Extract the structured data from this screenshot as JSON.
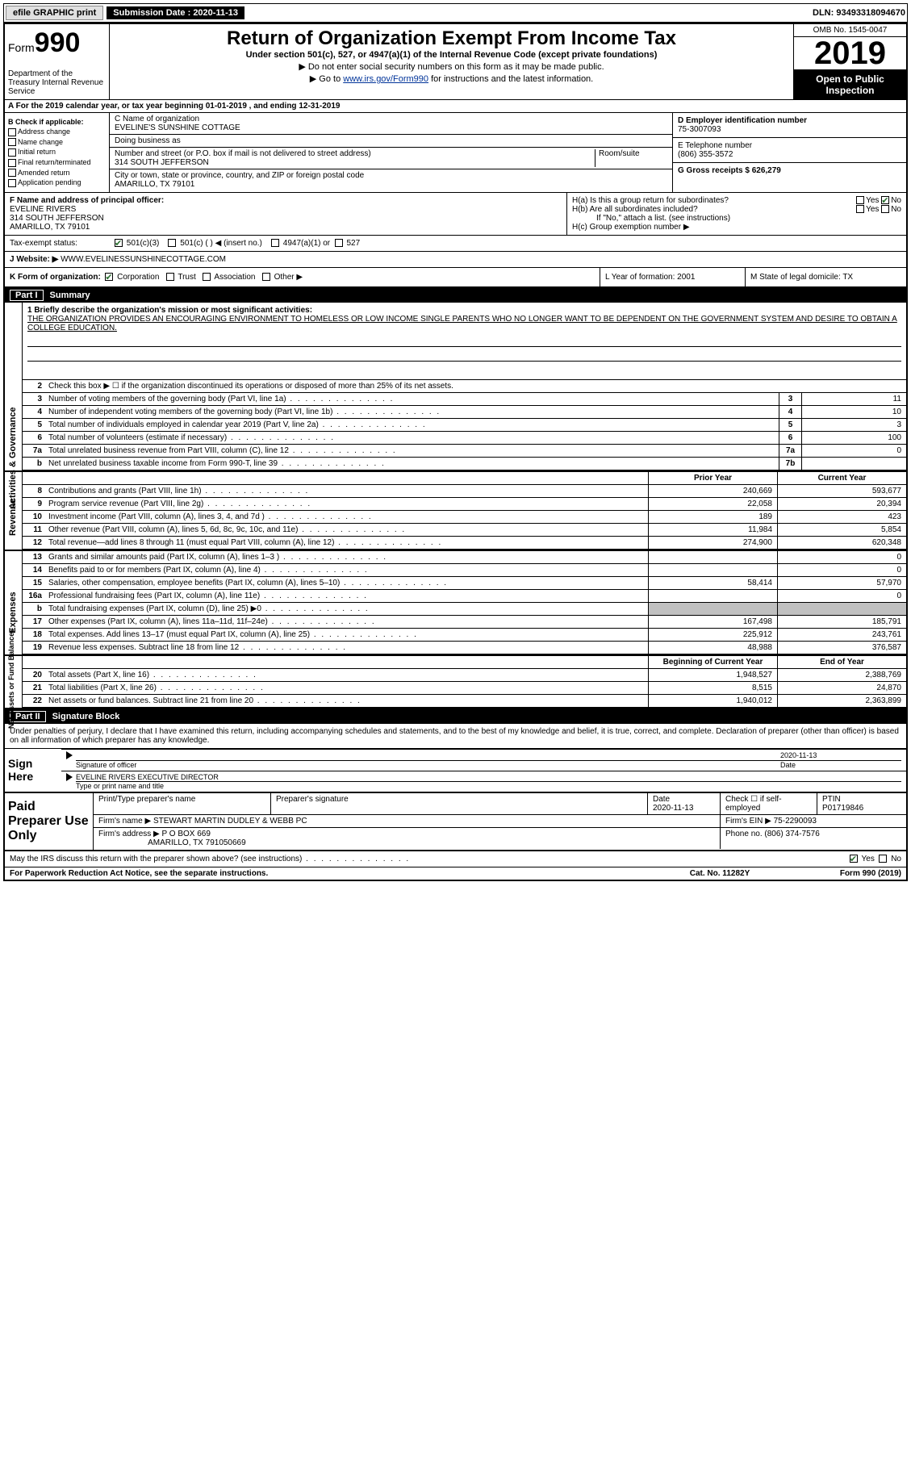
{
  "topbar": {
    "efile": "efile GRAPHIC print",
    "submission_label": "Submission Date : 2020-11-13",
    "dln": "DLN: 93493318094670"
  },
  "header": {
    "form_prefix": "Form",
    "form_number": "990",
    "dept": "Department of the Treasury Internal Revenue Service",
    "title": "Return of Organization Exempt From Income Tax",
    "subtitle": "Under section 501(c), 527, or 4947(a)(1) of the Internal Revenue Code (except private foundations)",
    "note1": "▶ Do not enter social security numbers on this form as it may be made public.",
    "note2_prefix": "▶ Go to ",
    "note2_link": "www.irs.gov/Form990",
    "note2_suffix": " for instructions and the latest information.",
    "omb": "OMB No. 1545-0047",
    "year": "2019",
    "open": "Open to Public Inspection"
  },
  "period": "A For the 2019 calendar year, or tax year beginning 01-01-2019   , and ending 12-31-2019",
  "checkboxes": {
    "heading": "B Check if applicable:",
    "items": [
      "Address change",
      "Name change",
      "Initial return",
      "Final return/terminated",
      "Amended return",
      "Application pending"
    ]
  },
  "entity": {
    "name_label": "C Name of organization",
    "name": "EVELINE'S SUNSHINE COTTAGE",
    "dba_label": "Doing business as",
    "addr_label": "Number and street (or P.O. box if mail is not delivered to street address)",
    "room_label": "Room/suite",
    "addr": "314 SOUTH JEFFERSON",
    "city_label": "City or town, state or province, country, and ZIP or foreign postal code",
    "city": "AMARILLO, TX  79101",
    "ein_label": "D Employer identification number",
    "ein": "75-3007093",
    "phone_label": "E Telephone number",
    "phone": "(806) 355-3572",
    "gross_label": "G Gross receipts $ 626,279"
  },
  "officer": {
    "label": "F  Name and address of principal officer:",
    "name": "EVELINE RIVERS",
    "addr1": "314 SOUTH JEFFERSON",
    "addr2": "AMARILLO, TX  79101",
    "ha": "H(a)  Is this a group return for subordinates?",
    "hb": "H(b)  Are all subordinates included?",
    "hb_note": "If \"No,\" attach a list. (see instructions)",
    "hc": "H(c)  Group exemption number ▶",
    "yes": "Yes",
    "no": "No"
  },
  "status": {
    "label": "Tax-exempt status:",
    "c3": "501(c)(3)",
    "c_other": "501(c) (  ) ◀ (insert no.)",
    "c4947": "4947(a)(1) or",
    "c527": "527"
  },
  "website": {
    "label": "J   Website: ▶",
    "value": "WWW.EVELINESSUNSHINECOTTAGE.COM"
  },
  "korg": {
    "label": "K Form of organization:",
    "corp": "Corporation",
    "trust": "Trust",
    "assoc": "Association",
    "other": "Other ▶",
    "year_label": "L Year of formation: 2001",
    "state_label": "M State of legal domicile: TX"
  },
  "part1": {
    "part": "Part I",
    "title": "Summary",
    "mission_label": "1  Briefly describe the organization's mission or most significant activities:",
    "mission": "THE ORGANIZATION PROVIDES AN ENCOURAGING ENVIRONMENT TO HOMELESS OR LOW INCOME SINGLE PARENTS WHO NO LONGER WANT TO BE DEPENDENT ON THE GOVERNMENT SYSTEM AND DESIRE TO OBTAIN A COLLEGE EDUCATION.",
    "line2": "Check this box ▶ ☐  if the organization discontinued its operations or disposed of more than 25% of its net assets.",
    "sections": {
      "activities": "Activities & Governance",
      "revenue": "Revenue",
      "expenses": "Expenses",
      "netassets": "Net Assets or Fund Balances"
    },
    "lines_gov": [
      {
        "n": "3",
        "lbl": "Number of voting members of the governing body (Part VI, line 1a)",
        "box": "3",
        "val": "11"
      },
      {
        "n": "4",
        "lbl": "Number of independent voting members of the governing body (Part VI, line 1b)",
        "box": "4",
        "val": "10"
      },
      {
        "n": "5",
        "lbl": "Total number of individuals employed in calendar year 2019 (Part V, line 2a)",
        "box": "5",
        "val": "3"
      },
      {
        "n": "6",
        "lbl": "Total number of volunteers (estimate if necessary)",
        "box": "6",
        "val": "100"
      },
      {
        "n": "7a",
        "lbl": "Total unrelated business revenue from Part VIII, column (C), line 12",
        "box": "7a",
        "val": "0"
      },
      {
        "n": "b",
        "lbl": "Net unrelated business taxable income from Form 990-T, line 39",
        "box": "7b",
        "val": ""
      }
    ],
    "col_prior": "Prior Year",
    "col_current": "Current Year",
    "lines_rev": [
      {
        "n": "8",
        "lbl": "Contributions and grants (Part VIII, line 1h)",
        "prior": "240,669",
        "curr": "593,677"
      },
      {
        "n": "9",
        "lbl": "Program service revenue (Part VIII, line 2g)",
        "prior": "22,058",
        "curr": "20,394"
      },
      {
        "n": "10",
        "lbl": "Investment income (Part VIII, column (A), lines 3, 4, and 7d )",
        "prior": "189",
        "curr": "423"
      },
      {
        "n": "11",
        "lbl": "Other revenue (Part VIII, column (A), lines 5, 6d, 8c, 9c, 10c, and 11e)",
        "prior": "11,984",
        "curr": "5,854"
      },
      {
        "n": "12",
        "lbl": "Total revenue—add lines 8 through 11 (must equal Part VIII, column (A), line 12)",
        "prior": "274,900",
        "curr": "620,348"
      }
    ],
    "lines_exp": [
      {
        "n": "13",
        "lbl": "Grants and similar amounts paid (Part IX, column (A), lines 1–3 )",
        "prior": "",
        "curr": "0"
      },
      {
        "n": "14",
        "lbl": "Benefits paid to or for members (Part IX, column (A), line 4)",
        "prior": "",
        "curr": "0"
      },
      {
        "n": "15",
        "lbl": "Salaries, other compensation, employee benefits (Part IX, column (A), lines 5–10)",
        "prior": "58,414",
        "curr": "57,970"
      },
      {
        "n": "16a",
        "lbl": "Professional fundraising fees (Part IX, column (A), line 11e)",
        "prior": "",
        "curr": "0"
      },
      {
        "n": "b",
        "lbl": "Total fundraising expenses (Part IX, column (D), line 25) ▶0",
        "prior": "grey",
        "curr": "grey"
      },
      {
        "n": "17",
        "lbl": "Other expenses (Part IX, column (A), lines 11a–11d, 11f–24e)",
        "prior": "167,498",
        "curr": "185,791"
      },
      {
        "n": "18",
        "lbl": "Total expenses. Add lines 13–17 (must equal Part IX, column (A), line 25)",
        "prior": "225,912",
        "curr": "243,761"
      },
      {
        "n": "19",
        "lbl": "Revenue less expenses. Subtract line 18 from line 12",
        "prior": "48,988",
        "curr": "376,587"
      }
    ],
    "col_beg": "Beginning of Current Year",
    "col_end": "End of Year",
    "lines_net": [
      {
        "n": "20",
        "lbl": "Total assets (Part X, line 16)",
        "prior": "1,948,527",
        "curr": "2,388,769"
      },
      {
        "n": "21",
        "lbl": "Total liabilities (Part X, line 26)",
        "prior": "8,515",
        "curr": "24,870"
      },
      {
        "n": "22",
        "lbl": "Net assets or fund balances. Subtract line 21 from line 20",
        "prior": "1,940,012",
        "curr": "2,363,899"
      }
    ]
  },
  "part2": {
    "part": "Part II",
    "title": "Signature Block",
    "decl": "Under penalties of perjury, I declare that I have examined this return, including accompanying schedules and statements, and to the best of my knowledge and belief, it is true, correct, and complete. Declaration of preparer (other than officer) is based on all information of which preparer has any knowledge.",
    "sign_here": "Sign Here",
    "sig_officer": "Signature of officer",
    "date": "Date",
    "sig_date": "2020-11-13",
    "officer_name": "EVELINE RIVERS  EXECUTIVE DIRECTOR",
    "type_name": "Type or print name and title",
    "paid": "Paid Preparer Use Only",
    "prep_name_lbl": "Print/Type preparer's name",
    "prep_sig_lbl": "Preparer's signature",
    "prep_date_lbl": "Date",
    "prep_date": "2020-11-13",
    "check_self": "Check ☐ if self-employed",
    "ptin_lbl": "PTIN",
    "ptin": "P01719846",
    "firm_name_lbl": "Firm's name    ▶",
    "firm_name": "STEWART MARTIN DUDLEY & WEBB PC",
    "firm_ein_lbl": "Firm's EIN ▶",
    "firm_ein": "75-2290093",
    "firm_addr_lbl": "Firm's address ▶",
    "firm_addr1": "P O BOX 669",
    "firm_addr2": "AMARILLO, TX  791050669",
    "firm_phone_lbl": "Phone no.",
    "firm_phone": "(806) 374-7576"
  },
  "footer": {
    "irs_q": "May the IRS discuss this return with the preparer shown above? (see instructions)",
    "yes": "Yes",
    "no": "No",
    "paperwork": "For Paperwork Reduction Act Notice, see the separate instructions.",
    "cat": "Cat. No. 11282Y",
    "form": "Form 990 (2019)"
  }
}
